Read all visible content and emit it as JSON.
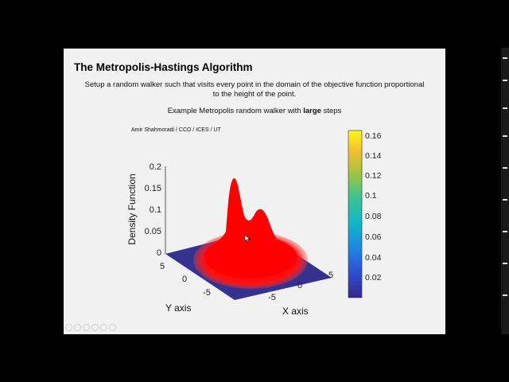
{
  "slide": {
    "title": "The Metropolis-Hastings Algorithm",
    "description_line1": "Setup a random walker such that visits every point in the domain of the objective function proportional",
    "description_line2": "to the height of the point.",
    "example_prefix": "Example Metropolis random walker with ",
    "example_bold": "large",
    "example_suffix": " steps",
    "author": "Amir Shahmoradi / CCO / ICES / UT"
  },
  "plot": {
    "zlabel": "Density Function",
    "ylabel": "Y axis",
    "xlabel": "X axis",
    "z_ticks": [
      "0.2",
      "0.15",
      "0.1",
      "0.05",
      "0"
    ],
    "y_ticks": [
      "5",
      "0",
      "-5"
    ],
    "x_ticks": [
      "-5",
      "0",
      "5"
    ],
    "colorbar_ticks": [
      "0.16",
      "0.14",
      "0.12",
      "0.1",
      "0.08",
      "0.06",
      "0.04",
      "0.02"
    ],
    "colors": {
      "surface": "#ff0000",
      "base": "#35318f",
      "samples": "#ff1a1a"
    }
  }
}
